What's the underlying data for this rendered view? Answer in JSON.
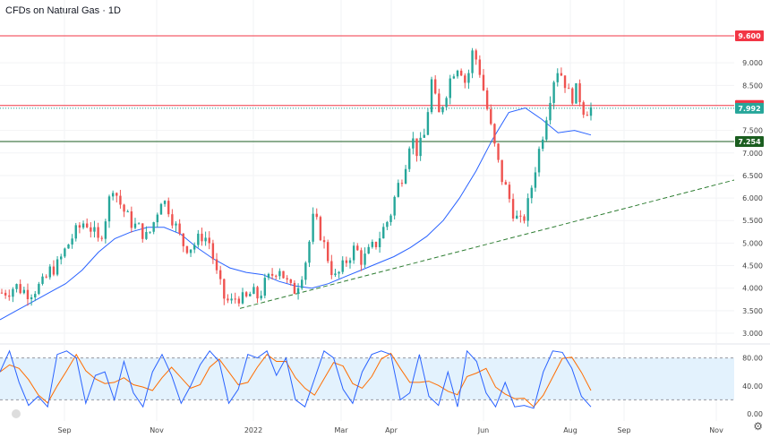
{
  "chart_title": "CFDs on Natural Gas · 1D",
  "icons": {
    "tv_logo": "tradingview-logo-icon",
    "settings": "gear-icon"
  },
  "colors": {
    "up": "#26a69a",
    "down": "#ef5350",
    "ma": "#2962ff",
    "resistance_upper": "#f23645",
    "resistance_mid": "#f23645",
    "support": "#1b5e20",
    "trendline": "#2e7d32",
    "stoch_k": "#2962ff",
    "stoch_d": "#ff6d00",
    "stoch_band": "#e3f2fd"
  },
  "chart_data": {
    "type": "candlestick",
    "price_axis": {
      "min": 3.0,
      "max": 9.6,
      "ticks": [
        "3.000",
        "3.500",
        "4.000",
        "4.500",
        "5.000",
        "5.500",
        "6.000",
        "6.500",
        "7.000",
        "7.500",
        "8.000",
        "8.500",
        "9.000"
      ]
    },
    "x_axis_labels": [
      "Sep",
      "Nov",
      "2022",
      "Mar",
      "Apr",
      "Jun",
      "Aug",
      "Sep",
      "Nov"
    ],
    "price_tags": [
      {
        "label": "9.600",
        "value": 9.6,
        "color": "#f23645"
      },
      {
        "label": "8.054",
        "value": 8.054,
        "color": "#f23645"
      },
      {
        "label": "7.992",
        "value": 7.992,
        "color": "#26a69a"
      },
      {
        "label": "7.254",
        "value": 7.254,
        "color": "#1b5e20"
      }
    ],
    "horizontal_lines": [
      {
        "value": 9.6,
        "style": "solid",
        "color": "#f23645"
      },
      {
        "value": 8.054,
        "style": "solid",
        "color": "#f23645"
      },
      {
        "value": 7.992,
        "style": "dotted",
        "color": "#26a69a"
      },
      {
        "value": 7.254,
        "style": "solid",
        "color": "#1b5e20"
      }
    ],
    "trendline": {
      "style": "dashed",
      "from_value": 3.55,
      "to_value": 6.4
    },
    "close_path": [
      3.9,
      3.95,
      4.05,
      3.95,
      3.9,
      4.0,
      4.1,
      4.4,
      4.5,
      4.8,
      5.1,
      5.3,
      5.5,
      5.3,
      5.0,
      5.6,
      6.3,
      5.9,
      5.6,
      5.4,
      5.3,
      5.1,
      5.5,
      6.0,
      5.8,
      5.4,
      5.0,
      4.9,
      5.0,
      5.2,
      5.0,
      4.3,
      3.8,
      3.65,
      3.85,
      3.7,
      3.9,
      3.8,
      4.1,
      4.3,
      4.5,
      4.15,
      3.9,
      4.2,
      4.7,
      5.6,
      5.2,
      4.7,
      4.2,
      4.4,
      4.7,
      4.9,
      4.6,
      4.8,
      5.0,
      5.3,
      5.6,
      6.2,
      6.6,
      7.4,
      7.0,
      7.4,
      8.6,
      7.8,
      8.3,
      8.8,
      9.0,
      8.5,
      9.3,
      8.8,
      8.0,
      7.2,
      6.5,
      6.1,
      5.6,
      5.4,
      5.9,
      6.7,
      7.4,
      8.2,
      8.9,
      8.7,
      8.2,
      8.4,
      7.95,
      7.99
    ],
    "moving_average": [
      3.3,
      3.5,
      3.7,
      3.9,
      4.1,
      4.4,
      4.8,
      5.1,
      5.25,
      5.35,
      5.35,
      5.2,
      4.9,
      4.65,
      4.45,
      4.35,
      4.3,
      4.15,
      4.05,
      4.0,
      4.1,
      4.25,
      4.4,
      4.55,
      4.7,
      4.9,
      5.15,
      5.5,
      6.0,
      6.6,
      7.3,
      7.9,
      8.0,
      7.75,
      7.45,
      7.5,
      7.4
    ],
    "stochastic": {
      "axis_ticks": [
        "0.00",
        "40.00",
        "80.00"
      ],
      "upper_band": 80,
      "lower_band": 20,
      "k": [
        60,
        90,
        45,
        12,
        25,
        10,
        85,
        90,
        80,
        15,
        55,
        60,
        20,
        75,
        30,
        10,
        60,
        85,
        55,
        15,
        40,
        70,
        90,
        75,
        15,
        35,
        85,
        80,
        90,
        55,
        80,
        20,
        10,
        50,
        90,
        80,
        35,
        15,
        60,
        85,
        90,
        85,
        20,
        30,
        85,
        25,
        12,
        60,
        10,
        90,
        75,
        30,
        10,
        45,
        10,
        12,
        8,
        60,
        90,
        88,
        65,
        25,
        10
      ]
    }
  }
}
